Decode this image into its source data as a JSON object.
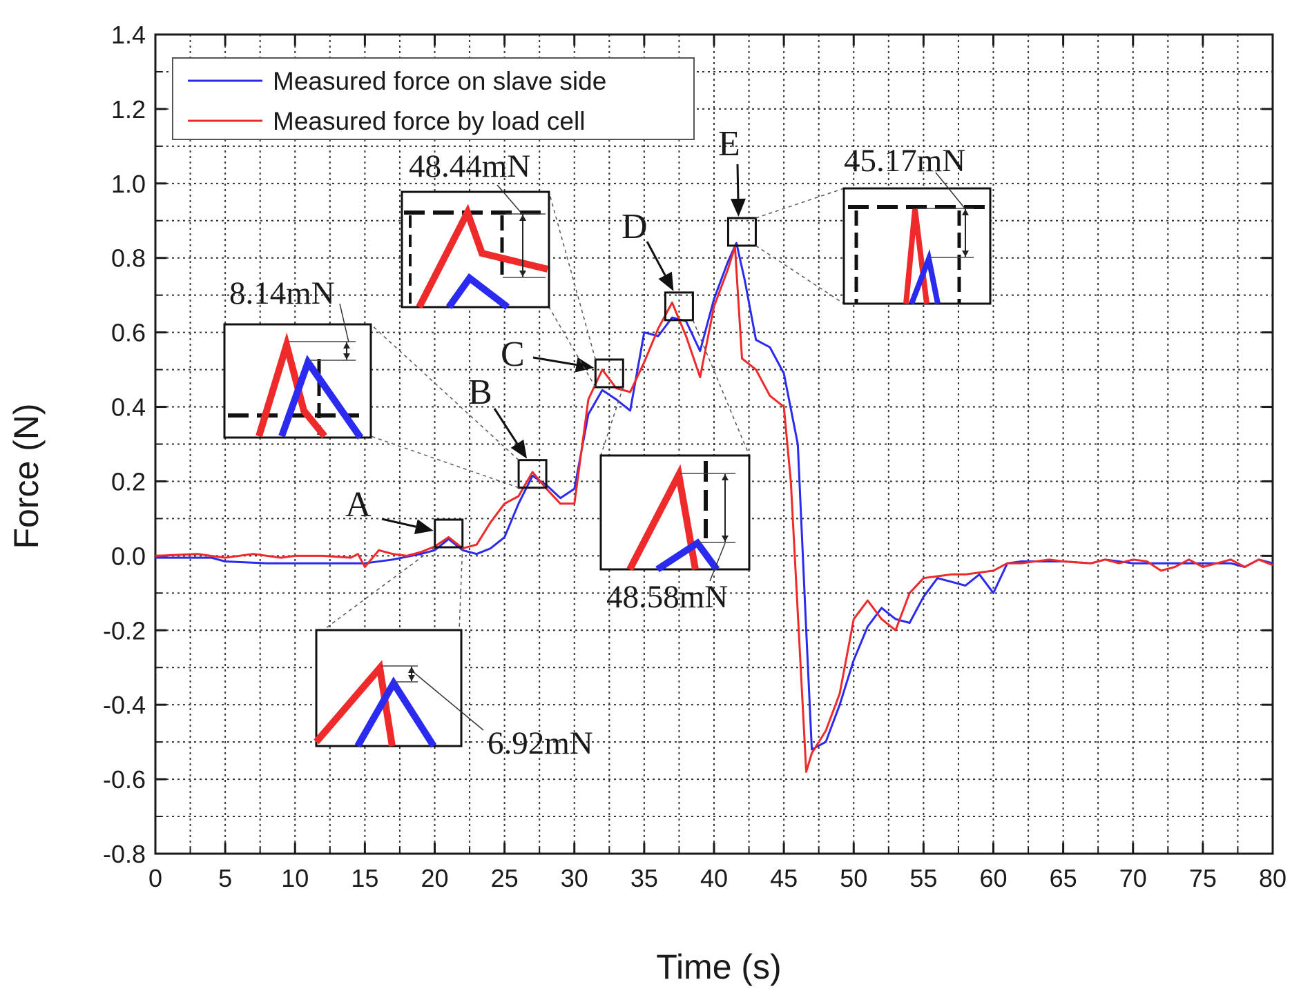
{
  "colors": {
    "slave": "#2a2af0",
    "loadcell": "#ee2a2a",
    "axis": "#1a1a1a",
    "grid": "#333333"
  },
  "chart_data": {
    "type": "line",
    "title": "",
    "xlabel": "Time (s)",
    "ylabel": "Force (N)",
    "xlim": [
      0,
      80
    ],
    "ylim": [
      -0.8,
      1.4
    ],
    "grid": true,
    "legend_position": "top-left",
    "x_ticks": [
      0,
      5,
      10,
      15,
      20,
      25,
      30,
      35,
      40,
      45,
      50,
      55,
      60,
      65,
      70,
      75,
      80
    ],
    "y_ticks": [
      -0.8,
      -0.6,
      -0.4,
      -0.2,
      0.0,
      0.2,
      0.4,
      0.6,
      0.8,
      1.0,
      1.2,
      1.4
    ],
    "x_tick_labels": [
      "0",
      "5",
      "10",
      "15",
      "20",
      "25",
      "30",
      "35",
      "40",
      "45",
      "50",
      "55",
      "60",
      "65",
      "70",
      "75",
      "80"
    ],
    "y_tick_labels": [
      "-0.8",
      "-0.6",
      "-0.4",
      "-0.2",
      "0.0",
      "0.2",
      "0.4",
      "0.6",
      "0.8",
      "1.0",
      "1.2",
      "1.4"
    ],
    "series": [
      {
        "name": "Measured force on slave side",
        "color": "#2a2af0",
        "points": [
          [
            0,
            -0.005
          ],
          [
            4,
            -0.005
          ],
          [
            5,
            -0.015
          ],
          [
            8,
            -0.02
          ],
          [
            12,
            -0.02
          ],
          [
            15,
            -0.02
          ],
          [
            17,
            -0.01
          ],
          [
            19,
            0.005
          ],
          [
            20,
            0.015
          ],
          [
            21,
            0.045
          ],
          [
            22,
            0.015
          ],
          [
            23,
            0.005
          ],
          [
            24,
            0.02
          ],
          [
            25,
            0.05
          ],
          [
            26,
            0.14
          ],
          [
            27,
            0.215
          ],
          [
            28,
            0.19
          ],
          [
            29,
            0.155
          ],
          [
            30,
            0.18
          ],
          [
            31,
            0.38
          ],
          [
            32,
            0.445
          ],
          [
            33,
            0.42
          ],
          [
            34,
            0.39
          ],
          [
            35,
            0.6
          ],
          [
            36,
            0.59
          ],
          [
            37,
            0.64
          ],
          [
            38,
            0.63
          ],
          [
            39,
            0.55
          ],
          [
            40,
            0.69
          ],
          [
            41,
            0.79
          ],
          [
            41.6,
            0.84
          ],
          [
            42.2,
            0.74
          ],
          [
            43,
            0.58
          ],
          [
            44,
            0.56
          ],
          [
            45,
            0.49
          ],
          [
            46,
            0.3
          ],
          [
            46.6,
            -0.2
          ],
          [
            47,
            -0.52
          ],
          [
            48,
            -0.5
          ],
          [
            49,
            -0.4
          ],
          [
            50,
            -0.28
          ],
          [
            51,
            -0.19
          ],
          [
            52,
            -0.14
          ],
          [
            53,
            -0.17
          ],
          [
            54,
            -0.18
          ],
          [
            55,
            -0.11
          ],
          [
            56,
            -0.06
          ],
          [
            57,
            -0.07
          ],
          [
            58,
            -0.08
          ],
          [
            59,
            -0.05
          ],
          [
            60,
            -0.1
          ],
          [
            61,
            -0.02
          ],
          [
            62,
            -0.015
          ],
          [
            65,
            -0.015
          ],
          [
            67,
            -0.02
          ],
          [
            68,
            -0.01
          ],
          [
            70,
            -0.02
          ],
          [
            72,
            -0.02
          ],
          [
            75,
            -0.02
          ],
          [
            77,
            -0.02
          ],
          [
            78,
            -0.03
          ],
          [
            79,
            -0.01
          ],
          [
            80,
            -0.02
          ]
        ]
      },
      {
        "name": "Measured force by load cell",
        "color": "#ee2a2a",
        "points": [
          [
            0,
            0.0
          ],
          [
            3,
            0.005
          ],
          [
            5,
            -0.005
          ],
          [
            7,
            0.005
          ],
          [
            9,
            -0.005
          ],
          [
            10,
            0.0
          ],
          [
            12,
            0.0
          ],
          [
            14,
            -0.005
          ],
          [
            14.5,
            0.005
          ],
          [
            15,
            -0.03
          ],
          [
            16,
            0.015
          ],
          [
            17,
            0.005
          ],
          [
            18,
            0.0
          ],
          [
            19,
            0.01
          ],
          [
            20,
            0.025
          ],
          [
            21,
            0.05
          ],
          [
            22,
            0.02
          ],
          [
            23,
            0.03
          ],
          [
            24,
            0.09
          ],
          [
            25,
            0.14
          ],
          [
            26,
            0.16
          ],
          [
            27,
            0.225
          ],
          [
            28,
            0.18
          ],
          [
            29,
            0.14
          ],
          [
            30,
            0.14
          ],
          [
            31,
            0.42
          ],
          [
            32,
            0.5
          ],
          [
            33,
            0.45
          ],
          [
            34,
            0.44
          ],
          [
            35,
            0.52
          ],
          [
            36,
            0.61
          ],
          [
            37,
            0.68
          ],
          [
            38,
            0.59
          ],
          [
            39,
            0.48
          ],
          [
            40,
            0.67
          ],
          [
            41,
            0.77
          ],
          [
            41.5,
            0.83
          ],
          [
            42,
            0.53
          ],
          [
            43,
            0.5
          ],
          [
            44,
            0.43
          ],
          [
            45,
            0.4
          ],
          [
            45.5,
            0.2
          ],
          [
            46.6,
            -0.58
          ],
          [
            47,
            -0.53
          ],
          [
            48,
            -0.47
          ],
          [
            49,
            -0.37
          ],
          [
            50,
            -0.17
          ],
          [
            51,
            -0.12
          ],
          [
            52,
            -0.17
          ],
          [
            53,
            -0.2
          ],
          [
            54,
            -0.1
          ],
          [
            55,
            -0.06
          ],
          [
            56,
            -0.055
          ],
          [
            57,
            -0.05
          ],
          [
            58,
            -0.05
          ],
          [
            59,
            -0.045
          ],
          [
            60,
            -0.04
          ],
          [
            61,
            -0.02
          ],
          [
            62,
            -0.02
          ],
          [
            64,
            -0.01
          ],
          [
            65,
            -0.015
          ],
          [
            67,
            -0.02
          ],
          [
            68,
            -0.01
          ],
          [
            69,
            -0.02
          ],
          [
            70,
            -0.01
          ],
          [
            71,
            -0.015
          ],
          [
            72,
            -0.04
          ],
          [
            73,
            -0.03
          ],
          [
            74,
            -0.01
          ],
          [
            75,
            -0.03
          ],
          [
            76,
            -0.02
          ],
          [
            77,
            -0.01
          ],
          [
            78,
            -0.03
          ],
          [
            79,
            -0.01
          ],
          [
            80,
            -0.025
          ]
        ]
      }
    ],
    "annotations": [
      {
        "letter": "A",
        "value_label": "6.92mN",
        "x": 21,
        "y": 0.06
      },
      {
        "letter": "B",
        "value_label": "8.14mN",
        "x": 27,
        "y": 0.22
      },
      {
        "letter": "C",
        "value_label": "48.44mN",
        "x": 32.5,
        "y": 0.49
      },
      {
        "letter": "D",
        "value_label": "48.58mN",
        "x": 37.5,
        "y": 0.67
      },
      {
        "letter": "E",
        "value_label": "45.17mN",
        "x": 42,
        "y": 0.87
      }
    ]
  }
}
